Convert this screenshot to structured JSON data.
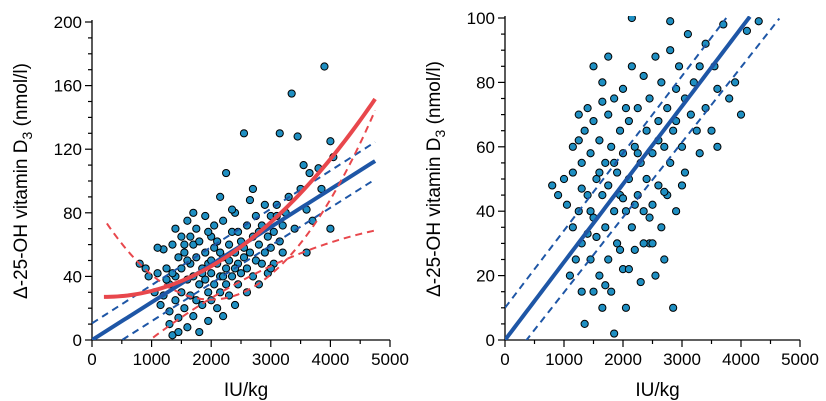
{
  "chart_data": [
    {
      "type": "scatter",
      "xlabel": "IU/kg",
      "ylabel_main": "Δ-25-OH vitamin D",
      "ylabel_sub": "3",
      "ylabel_tail": " (nmol/l)",
      "xlim": [
        0,
        5000
      ],
      "ylim": [
        0,
        200
      ],
      "xticks": [
        0,
        1000,
        2000,
        3000,
        4000,
        5000
      ],
      "yticks": [
        0,
        40,
        80,
        120,
        160,
        200
      ],
      "colors": {
        "points": "#1f8fc2",
        "linear": "#1e56a6",
        "quadratic": "#e8474c"
      },
      "points": [
        [
          800,
          48
        ],
        [
          900,
          45
        ],
        [
          1050,
          30
        ],
        [
          1100,
          42
        ],
        [
          1150,
          22
        ],
        [
          1200,
          57
        ],
        [
          1200,
          28
        ],
        [
          1250,
          45
        ],
        [
          1300,
          18
        ],
        [
          1300,
          35
        ],
        [
          1300,
          10
        ],
        [
          1350,
          60
        ],
        [
          1350,
          3
        ],
        [
          1400,
          40
        ],
        [
          1400,
          25
        ],
        [
          1400,
          70
        ],
        [
          1450,
          52
        ],
        [
          1450,
          14
        ],
        [
          1500,
          30
        ],
        [
          1500,
          65
        ],
        [
          1500,
          45
        ],
        [
          1550,
          20
        ],
        [
          1550,
          55
        ],
        [
          1600,
          38
        ],
        [
          1600,
          8
        ],
        [
          1600,
          75
        ],
        [
          1650,
          48
        ],
        [
          1650,
          28
        ],
        [
          1700,
          60
        ],
        [
          1700,
          15
        ],
        [
          1700,
          40
        ],
        [
          1750,
          52
        ],
        [
          1750,
          70
        ],
        [
          1750,
          25
        ],
        [
          1800,
          35
        ],
        [
          1800,
          5
        ],
        [
          1800,
          62
        ],
        [
          1850,
          45
        ],
        [
          1850,
          22
        ],
        [
          1900,
          55
        ],
        [
          1900,
          38
        ],
        [
          1900,
          78
        ],
        [
          1950,
          30
        ],
        [
          1950,
          48
        ],
        [
          1950,
          12
        ],
        [
          2000,
          42
        ],
        [
          2000,
          65
        ],
        [
          2000,
          25
        ],
        [
          2050,
          58
        ],
        [
          2050,
          35
        ],
        [
          2050,
          72
        ],
        [
          2100,
          48
        ],
        [
          2100,
          20
        ],
        [
          2100,
          62
        ],
        [
          2150,
          40
        ],
        [
          2150,
          90
        ],
        [
          2150,
          30
        ],
        [
          2200,
          52
        ],
        [
          2200,
          15
        ],
        [
          2200,
          75
        ],
        [
          2250,
          45
        ],
        [
          2250,
          105
        ],
        [
          2250,
          35
        ],
        [
          2300,
          60
        ],
        [
          2300,
          28
        ],
        [
          2300,
          50
        ],
        [
          2350,
          68
        ],
        [
          2350,
          40
        ],
        [
          2400,
          55
        ],
        [
          2400,
          22
        ],
        [
          2400,
          80
        ],
        [
          2450,
          48
        ],
        [
          2450,
          35
        ],
        [
          2500,
          62
        ],
        [
          2500,
          42
        ],
        [
          2550,
          130
        ],
        [
          2550,
          58
        ],
        [
          2600,
          45
        ],
        [
          2600,
          72
        ],
        [
          2600,
          30
        ],
        [
          2650,
          88
        ],
        [
          2650,
          55
        ],
        [
          2700,
          40
        ],
        [
          2700,
          65
        ],
        [
          2750,
          50
        ],
        [
          2750,
          78
        ],
        [
          2800,
          60
        ],
        [
          2800,
          35
        ],
        [
          2850,
          72
        ],
        [
          2850,
          48
        ],
        [
          2900,
          85
        ],
        [
          2900,
          55
        ],
        [
          2950,
          65
        ],
        [
          2950,
          42
        ],
        [
          3000,
          78
        ],
        [
          3000,
          58
        ],
        [
          3050,
          68
        ],
        [
          3050,
          48
        ],
        [
          3100,
          85
        ],
        [
          3150,
          62
        ],
        [
          3150,
          130
        ],
        [
          3200,
          72
        ],
        [
          3200,
          55
        ],
        [
          3300,
          90
        ],
        [
          3350,
          155
        ],
        [
          3400,
          70
        ],
        [
          3450,
          128
        ],
        [
          3500,
          95
        ],
        [
          3550,
          110
        ],
        [
          3600,
          82
        ],
        [
          3650,
          105
        ],
        [
          3700,
          75
        ],
        [
          3800,
          108
        ],
        [
          3850,
          95
        ],
        [
          3900,
          172
        ],
        [
          4000,
          125
        ],
        [
          4050,
          115
        ],
        [
          4000,
          70
        ],
        [
          950,
          40
        ],
        [
          1100,
          58
        ],
        [
          1250,
          38
        ],
        [
          1450,
          5
        ],
        [
          1700,
          80
        ],
        [
          1850,
          42
        ],
        [
          2000,
          50
        ],
        [
          2200,
          40
        ],
        [
          2350,
          82
        ],
        [
          2550,
          52
        ],
        [
          2700,
          95
        ],
        [
          3000,
          45
        ],
        [
          3250,
          80
        ],
        [
          3600,
          55
        ],
        [
          1550,
          60
        ],
        [
          1650,
          65
        ],
        [
          1950,
          68
        ],
        [
          2450,
          68
        ],
        [
          2800,
          68
        ],
        [
          3100,
          78
        ],
        [
          1350,
          42
        ],
        [
          1600,
          50
        ],
        [
          2150,
          55
        ],
        [
          2400,
          45
        ]
      ],
      "lines": [
        {
          "style": "solid",
          "color": "#1e56a6",
          "kind": "linear",
          "a": 0.0,
          "b": 0.0237,
          "x0": 0,
          "x1": 4750
        },
        {
          "style": "dashed",
          "color": "#1e56a6",
          "kind": "linear",
          "a": 10.5,
          "b": 0.024,
          "x0": 0,
          "x1": 4750
        },
        {
          "style": "dashed",
          "color": "#1e56a6",
          "kind": "linear",
          "a": -12.0,
          "b": 0.0238,
          "x0": 0,
          "x1": 4750
        },
        {
          "style": "solid",
          "color": "#e8474c",
          "kind": "quadratic",
          "a": 27.4,
          "b": -0.0026,
          "c": 6.05e-06,
          "x0": 200,
          "x1": 4750
        },
        {
          "style": "dashed",
          "color": "#e8474c",
          "kind": "quadratic",
          "a": 88.0,
          "b": -0.0627,
          "c": 1.57e-05,
          "x0": 250,
          "x1": 4750
        },
        {
          "style": "dashed",
          "color": "#e8474c",
          "kind": "quadratic",
          "a": -30.0,
          "b": 0.0335,
          "c": -2.67e-06,
          "x0": 550,
          "x1": 4750
        }
      ]
    },
    {
      "type": "scatter",
      "xlabel": "IU/kg",
      "ylabel_main": "Δ-25-OH vitamin D",
      "ylabel_sub": "3",
      "ylabel_tail": " (nmol/l)",
      "xlim": [
        0,
        5000
      ],
      "ylim": [
        0,
        100
      ],
      "xticks": [
        0,
        1000,
        2000,
        3000,
        4000,
        5000
      ],
      "yticks": [
        0,
        20,
        40,
        60,
        80,
        100
      ],
      "colors": {
        "points": "#1f8fc2",
        "linear": "#1e56a6"
      },
      "points": [
        [
          800,
          48
        ],
        [
          900,
          45
        ],
        [
          1000,
          50
        ],
        [
          1050,
          42
        ],
        [
          1100,
          20
        ],
        [
          1150,
          52
        ],
        [
          1150,
          35
        ],
        [
          1200,
          25
        ],
        [
          1250,
          70
        ],
        [
          1250,
          62
        ],
        [
          1250,
          40
        ],
        [
          1300,
          15
        ],
        [
          1300,
          55
        ],
        [
          1300,
          30
        ],
        [
          1350,
          5
        ],
        [
          1350,
          65
        ],
        [
          1400,
          45
        ],
        [
          1400,
          72
        ],
        [
          1450,
          25
        ],
        [
          1450,
          58
        ],
        [
          1500,
          38
        ],
        [
          1500,
          15
        ],
        [
          1500,
          68
        ],
        [
          1550,
          50
        ],
        [
          1550,
          32
        ],
        [
          1600,
          62
        ],
        [
          1600,
          20
        ],
        [
          1650,
          45
        ],
        [
          1650,
          80
        ],
        [
          1650,
          10
        ],
        [
          1700,
          55
        ],
        [
          1700,
          35
        ],
        [
          1750,
          70
        ],
        [
          1750,
          25
        ],
        [
          1750,
          48
        ],
        [
          1800,
          60
        ],
        [
          1800,
          15
        ],
        [
          1850,
          40
        ],
        [
          1850,
          75
        ],
        [
          1850,
          2
        ],
        [
          1900,
          52
        ],
        [
          1900,
          30
        ],
        [
          1950,
          65
        ],
        [
          1950,
          45
        ],
        [
          2000,
          22
        ],
        [
          2000,
          58
        ],
        [
          2000,
          78
        ],
        [
          2050,
          40
        ],
        [
          2050,
          10
        ],
        [
          2100,
          68
        ],
        [
          2100,
          50
        ],
        [
          2150,
          35
        ],
        [
          2150,
          100
        ],
        [
          2200,
          60
        ],
        [
          2200,
          28
        ],
        [
          2250,
          45
        ],
        [
          2250,
          72
        ],
        [
          2300,
          55
        ],
        [
          2300,
          18
        ],
        [
          2350,
          82
        ],
        [
          2350,
          40
        ],
        [
          2400,
          65
        ],
        [
          2400,
          50
        ],
        [
          2450,
          30
        ],
        [
          2450,
          75
        ],
        [
          2500,
          58
        ],
        [
          2500,
          42
        ],
        [
          2550,
          88
        ],
        [
          2550,
          20
        ],
        [
          2600,
          68
        ],
        [
          2600,
          48
        ],
        [
          2650,
          35
        ],
        [
          2650,
          80
        ],
        [
          2700,
          60
        ],
        [
          2700,
          25
        ],
        [
          2750,
          72
        ],
        [
          2750,
          45
        ],
        [
          2800,
          90
        ],
        [
          2800,
          55
        ],
        [
          2850,
          65
        ],
        [
          2850,
          10
        ],
        [
          2900,
          78
        ],
        [
          2900,
          40
        ],
        [
          2950,
          85
        ],
        [
          3000,
          60
        ],
        [
          3000,
          48
        ],
        [
          3050,
          75
        ],
        [
          3100,
          95
        ],
        [
          3150,
          70
        ],
        [
          3200,
          80
        ],
        [
          3300,
          58
        ],
        [
          3400,
          72
        ],
        [
          3500,
          65
        ],
        [
          3550,
          85
        ],
        [
          3600,
          78
        ],
        [
          3700,
          98
        ],
        [
          3800,
          75
        ],
        [
          3900,
          80
        ],
        [
          4000,
          70
        ],
        [
          4100,
          96
        ],
        [
          4300,
          99
        ],
        [
          2800,
          99
        ],
        [
          3300,
          85
        ],
        [
          1650,
          74
        ],
        [
          2200,
          42
        ],
        [
          2450,
          38
        ],
        [
          1500,
          85
        ],
        [
          1300,
          47
        ],
        [
          1950,
          28
        ],
        [
          2600,
          62
        ],
        [
          3050,
          52
        ],
        [
          3400,
          92
        ],
        [
          2050,
          72
        ],
        [
          1850,
          55
        ],
        [
          2350,
          30
        ],
        [
          2700,
          46
        ],
        [
          1150,
          60
        ],
        [
          1400,
          33
        ],
        [
          1700,
          17
        ],
        [
          2150,
          85
        ],
        [
          2900,
          68
        ],
        [
          3250,
          65
        ],
        [
          1600,
          52
        ],
        [
          2000,
          44
        ],
        [
          2250,
          58
        ],
        [
          2500,
          30
        ],
        [
          1750,
          88
        ],
        [
          2100,
          22
        ],
        [
          1450,
          40
        ],
        [
          3600,
          60
        ]
      ],
      "lines": [
        {
          "style": "solid",
          "color": "#1e56a6",
          "kind": "linear",
          "a": 0.0,
          "b": 0.0242,
          "x0": 0,
          "x1": 4150
        },
        {
          "style": "dashed",
          "color": "#1e56a6",
          "kind": "linear",
          "a": 10.0,
          "b": 0.024,
          "x0": 0,
          "x1": 3750
        },
        {
          "style": "dashed",
          "color": "#1e56a6",
          "kind": "linear",
          "a": -8.5,
          "b": 0.0233,
          "x0": 350,
          "x1": 4650
        }
      ]
    }
  ]
}
